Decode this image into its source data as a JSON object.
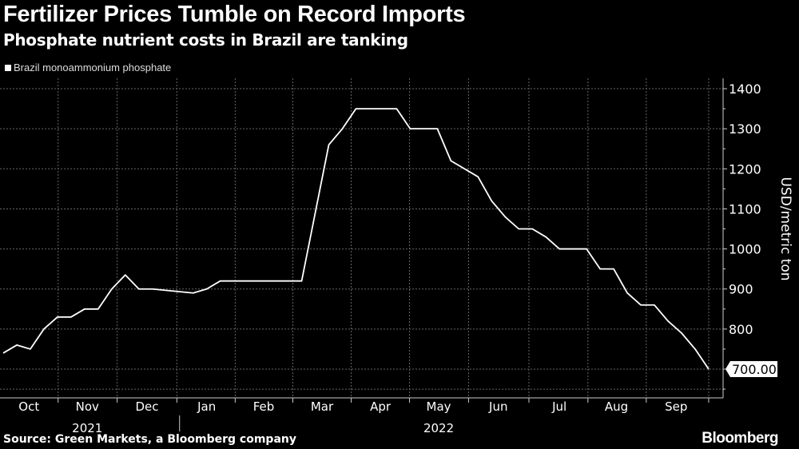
{
  "chart_data": {
    "type": "line",
    "title": "Fertilizer Prices Tumble on Record Imports",
    "subtitle": "Phosphate nutrient costs in Brazil are tanking",
    "ylabel": "USD/metric ton",
    "xlabel": "",
    "ylim": [
      650,
      1420
    ],
    "yticks": [
      "700",
      "800",
      "900",
      "1000",
      "1100",
      "1200",
      "1300",
      "1400"
    ],
    "grid": true,
    "legend_position": "top-left",
    "series": [
      {
        "name": "Brazil monoammonium phosphate",
        "color": "#ffffff",
        "points": [
          [
            0,
            740
          ],
          [
            1,
            760
          ],
          [
            2,
            750
          ],
          [
            3,
            800
          ],
          [
            4,
            830
          ],
          [
            5,
            830
          ],
          [
            6,
            850
          ],
          [
            7,
            850
          ],
          [
            8,
            900
          ],
          [
            9,
            935
          ],
          [
            10,
            900
          ],
          [
            11,
            900
          ],
          [
            14,
            890
          ],
          [
            15,
            900
          ],
          [
            16,
            920
          ],
          [
            22,
            920
          ],
          [
            24,
            1260
          ],
          [
            25,
            1300
          ],
          [
            26,
            1350
          ],
          [
            29,
            1350
          ],
          [
            30,
            1300
          ],
          [
            32,
            1300
          ],
          [
            33,
            1220
          ],
          [
            35,
            1180
          ],
          [
            36,
            1120
          ],
          [
            37,
            1080
          ],
          [
            38,
            1050
          ],
          [
            39,
            1050
          ],
          [
            40,
            1030
          ],
          [
            41,
            1000
          ],
          [
            43,
            1000
          ],
          [
            44,
            950
          ],
          [
            45,
            950
          ],
          [
            46,
            890
          ],
          [
            47,
            860
          ],
          [
            48,
            860
          ],
          [
            49,
            820
          ],
          [
            50,
            790
          ],
          [
            51,
            750
          ],
          [
            52,
            700
          ]
        ]
      }
    ],
    "x_unit": "week index (Oct 2021 – Sep 2022)",
    "months": [
      {
        "label": "Oct",
        "pos": 1.9
      },
      {
        "label": "Nov",
        "pos": 6.2
      },
      {
        "label": "Dec",
        "pos": 10.6
      },
      {
        "label": "Jan",
        "pos": 15
      },
      {
        "label": "Feb",
        "pos": 19.2
      },
      {
        "label": "Mar",
        "pos": 23.5
      },
      {
        "label": "Apr",
        "pos": 27.8
      },
      {
        "label": "May",
        "pos": 32.1
      },
      {
        "label": "Jun",
        "pos": 36.5
      },
      {
        "label": "Jul",
        "pos": 41
      },
      {
        "label": "Aug",
        "pos": 45.2
      },
      {
        "label": "Sep",
        "pos": 49.6
      }
    ],
    "years": [
      {
        "label": "2021",
        "pos": 6.2
      },
      {
        "label": "2022",
        "pos": 32.1
      }
    ],
    "year_separator_pos": 13,
    "last_value_label": "700.00",
    "source": "Source: Green Markets, a Bloomberg company",
    "brand": "Bloomberg"
  }
}
